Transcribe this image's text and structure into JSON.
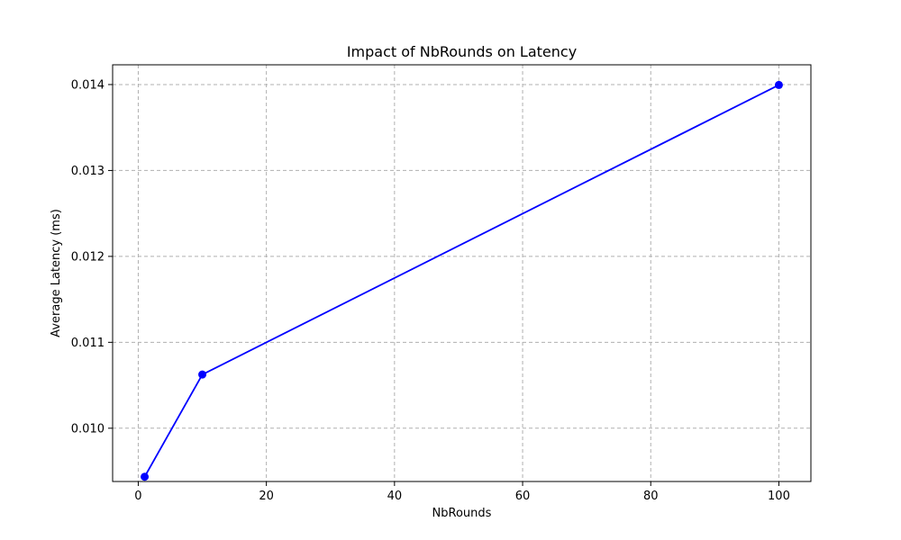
{
  "chart_data": {
    "type": "line",
    "title": "Impact of NbRounds on Latency",
    "xlabel": "NbRounds",
    "ylabel": "Average Latency (ms)",
    "xlim": [
      -4,
      105
    ],
    "ylim": [
      0.00938,
      0.01423
    ],
    "xticks": [
      0,
      20,
      40,
      60,
      80,
      100
    ],
    "xtick_labels": [
      "0",
      "20",
      "40",
      "60",
      "80",
      "100"
    ],
    "yticks": [
      0.01,
      0.011,
      0.012,
      0.013,
      0.014
    ],
    "ytick_labels": [
      "0.010",
      "0.011",
      "0.012",
      "0.013",
      "0.014"
    ],
    "grid": true,
    "series": [
      {
        "color": "#0000ff",
        "marker": "circle",
        "x": [
          1,
          10,
          100
        ],
        "y": [
          0.009435,
          0.010625,
          0.013995
        ]
      }
    ]
  }
}
